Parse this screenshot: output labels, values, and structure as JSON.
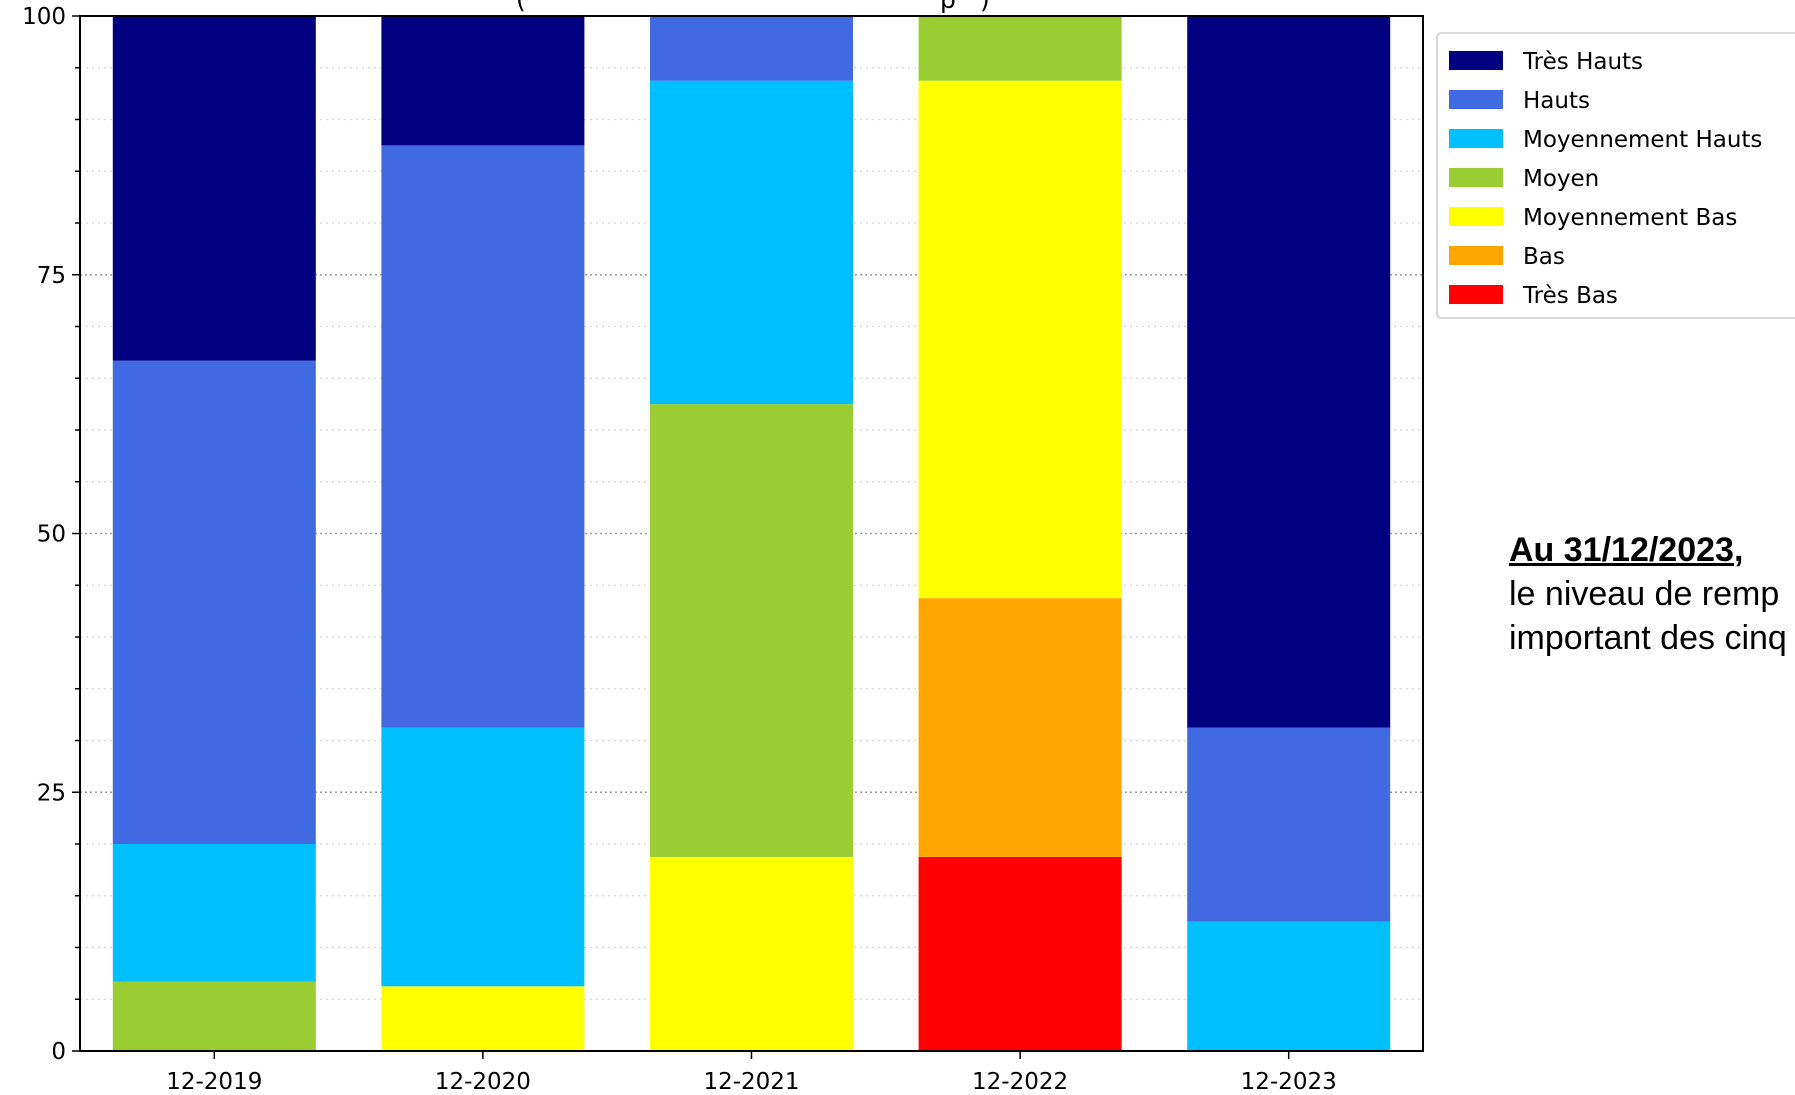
{
  "chart_data": {
    "type": "bar",
    "stacked": true,
    "title": "(",
    "title_right": ")",
    "title_mid": "p",
    "categories": [
      "12-2019",
      "12-2020",
      "12-2021",
      "12-2022",
      "12-2023"
    ],
    "ylim": [
      0,
      100
    ],
    "yticks": [
      0,
      25,
      50,
      75,
      100
    ],
    "grid": "dotted horizontal",
    "legend_placement": "top-right",
    "series": [
      {
        "name": "Très Bas",
        "color": "#ff0000",
        "values": [
          0,
          0,
          0,
          18.75,
          0
        ]
      },
      {
        "name": "Bas",
        "color": "#ffa500",
        "values": [
          0,
          0,
          0,
          25,
          0
        ]
      },
      {
        "name": "Moyennement Bas",
        "color": "#ffff00",
        "values": [
          0,
          6.25,
          18.75,
          50,
          0
        ]
      },
      {
        "name": "Moyen",
        "color": "#9acd32",
        "values": [
          6.7,
          0,
          43.75,
          6.25,
          0
        ]
      },
      {
        "name": "Moyennement Hauts",
        "color": "#00bfff",
        "values": [
          13.3,
          25,
          31.25,
          0,
          12.5
        ]
      },
      {
        "name": "Hauts",
        "color": "#4169e1",
        "values": [
          46.7,
          56.25,
          6.25,
          0,
          18.75
        ]
      },
      {
        "name": "Très Hauts",
        "color": "#000080",
        "values": [
          33.3,
          12.5,
          0,
          0,
          68.75
        ]
      }
    ]
  },
  "annotation": {
    "heading": "Au 31/12/2023",
    "comma": ",",
    "line1": "le niveau de remp",
    "line2": "important des cinq"
  }
}
